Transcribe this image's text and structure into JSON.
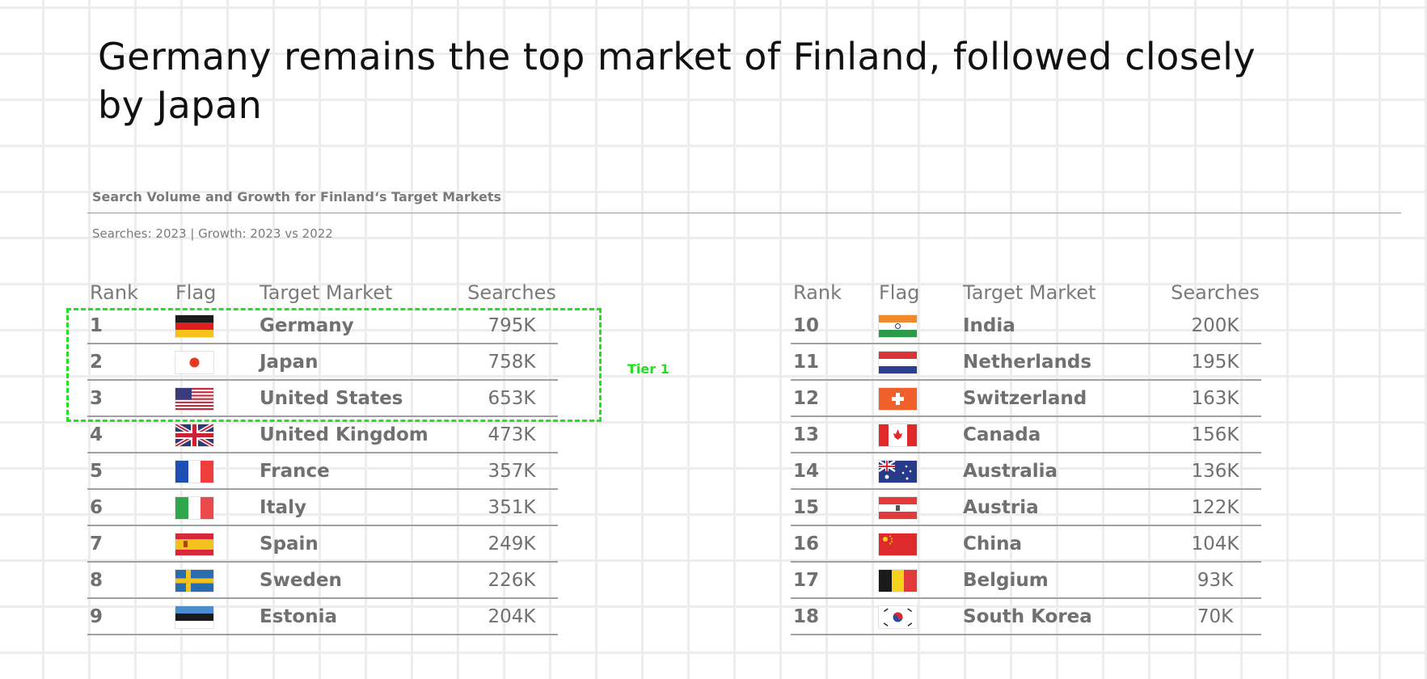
{
  "headline": "Germany remains the top market of Finland, followed closely by Japan",
  "subtitle": "Search Volume and Growth for Finland‘s Target Markets",
  "subtitle_note": "Searches: 2023 | Growth: 2023 vs 2022",
  "tier_label": "Tier 1",
  "columns": {
    "rank": "Rank",
    "flag": "Flag",
    "market": "Target Market",
    "searches": "Searches"
  },
  "colors": {
    "tier_outline": "#22e022",
    "text": "#767676",
    "headline": "#111111"
  },
  "left_table": [
    {
      "rank": "1",
      "market": "Germany",
      "searches": "795K",
      "flag_icon": "germany-flag-icon"
    },
    {
      "rank": "2",
      "market": "Japan",
      "searches": "758K",
      "flag_icon": "japan-flag-icon"
    },
    {
      "rank": "3",
      "market": "United States",
      "searches": "653K",
      "flag_icon": "united-states-flag-icon"
    },
    {
      "rank": "4",
      "market": "United Kingdom",
      "searches": "473K",
      "flag_icon": "united-kingdom-flag-icon"
    },
    {
      "rank": "5",
      "market": "France",
      "searches": "357K",
      "flag_icon": "france-flag-icon"
    },
    {
      "rank": "6",
      "market": "Italy",
      "searches": "351K",
      "flag_icon": "italy-flag-icon"
    },
    {
      "rank": "7",
      "market": "Spain",
      "searches": "249K",
      "flag_icon": "spain-flag-icon"
    },
    {
      "rank": "8",
      "market": "Sweden",
      "searches": "226K",
      "flag_icon": "sweden-flag-icon"
    },
    {
      "rank": "9",
      "market": "Estonia",
      "searches": "204K",
      "flag_icon": "estonia-flag-icon"
    }
  ],
  "right_table": [
    {
      "rank": "10",
      "market": "India",
      "searches": "200K",
      "flag_icon": "india-flag-icon"
    },
    {
      "rank": "11",
      "market": "Netherlands",
      "searches": "195K",
      "flag_icon": "netherlands-flag-icon"
    },
    {
      "rank": "12",
      "market": "Switzerland",
      "searches": "163K",
      "flag_icon": "switzerland-flag-icon"
    },
    {
      "rank": "13",
      "market": "Canada",
      "searches": "156K",
      "flag_icon": "canada-flag-icon"
    },
    {
      "rank": "14",
      "market": "Australia",
      "searches": "136K",
      "flag_icon": "australia-flag-icon"
    },
    {
      "rank": "15",
      "market": "Austria",
      "searches": "122K",
      "flag_icon": "austria-flag-icon"
    },
    {
      "rank": "16",
      "market": "China",
      "searches": "104K",
      "flag_icon": "china-flag-icon"
    },
    {
      "rank": "17",
      "market": "Belgium",
      "searches": "93K",
      "flag_icon": "belgium-flag-icon"
    },
    {
      "rank": "18",
      "market": "South Korea",
      "searches": "70K",
      "flag_icon": "south-korea-flag-icon"
    }
  ]
}
